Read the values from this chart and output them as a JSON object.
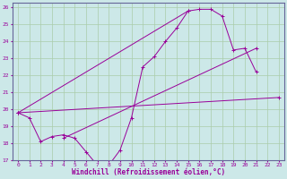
{
  "xlabel": "Windchill (Refroidissement éolien,°C)",
  "bg_color": "#cce8e8",
  "grid_color": "#aaccaa",
  "line_color": "#990099",
  "x_hours": [
    0,
    1,
    2,
    3,
    4,
    5,
    6,
    7,
    8,
    9,
    10,
    11,
    12,
    13,
    14,
    15,
    16,
    17,
    18,
    19,
    20,
    21,
    22,
    23
  ],
  "line1_y": [
    19.8,
    19.5,
    18.1,
    18.4,
    18.5,
    18.3,
    17.5,
    16.7,
    16.7,
    17.6,
    19.5,
    22.5,
    23.1,
    24.0,
    24.8,
    25.8,
    25.9,
    25.9,
    25.5,
    23.5,
    23.6,
    22.2,
    null,
    null
  ],
  "line2_x": [
    0,
    23
  ],
  "line2_y": [
    19.8,
    20.7
  ],
  "line3_x": [
    0,
    15
  ],
  "line3_y": [
    19.8,
    25.8
  ],
  "line4_x": [
    4,
    21
  ],
  "line4_y": [
    18.3,
    23.6
  ],
  "ylim": [
    17,
    26
  ],
  "yticks": [
    17,
    18,
    19,
    20,
    21,
    22,
    23,
    24,
    25,
    26
  ],
  "xticks": [
    0,
    1,
    2,
    3,
    4,
    5,
    6,
    7,
    8,
    9,
    10,
    11,
    12,
    13,
    14,
    15,
    16,
    17,
    18,
    19,
    20,
    21,
    22,
    23
  ]
}
